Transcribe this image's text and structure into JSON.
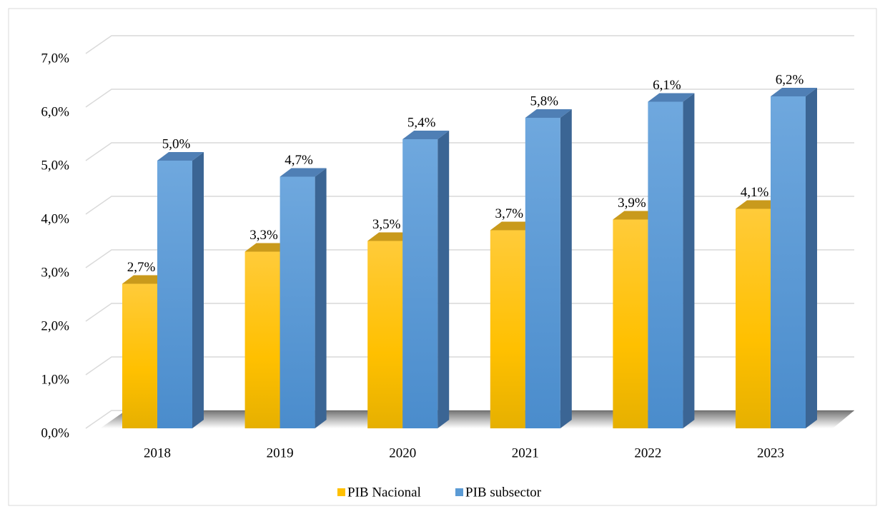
{
  "chart_data": {
    "type": "bar3d",
    "categories": [
      "2018",
      "2019",
      "2020",
      "2021",
      "2022",
      "2023"
    ],
    "series": [
      {
        "name": "PIB Nacional",
        "color": "#ffc000",
        "values": [
          2.7,
          3.3,
          3.5,
          3.7,
          3.9,
          4.1
        ],
        "value_labels": [
          "2,7%",
          "3,3%",
          "3,5%",
          "3,7%",
          "3,9%",
          "4,1%"
        ]
      },
      {
        "name": "PIB subsector",
        "color": "#5b9bd5",
        "values": [
          5.0,
          4.7,
          5.4,
          5.8,
          6.1,
          6.2
        ],
        "value_labels": [
          "5,0%",
          "4,7%",
          "5,4%",
          "5,8%",
          "6,1%",
          "6,2%"
        ]
      }
    ],
    "ylim": [
      0,
      7
    ],
    "yticks": [
      {
        "value": 0,
        "label": "0,0%"
      },
      {
        "value": 1,
        "label": "1,0%"
      },
      {
        "value": 2,
        "label": "2,0%"
      },
      {
        "value": 3,
        "label": "3,0%"
      },
      {
        "value": 4,
        "label": "4,0%"
      },
      {
        "value": 5,
        "label": "5,0%"
      },
      {
        "value": 6,
        "label": "6,0%"
      },
      {
        "value": 7,
        "label": "7,0%"
      }
    ],
    "grid": true,
    "legend": "bottom"
  }
}
